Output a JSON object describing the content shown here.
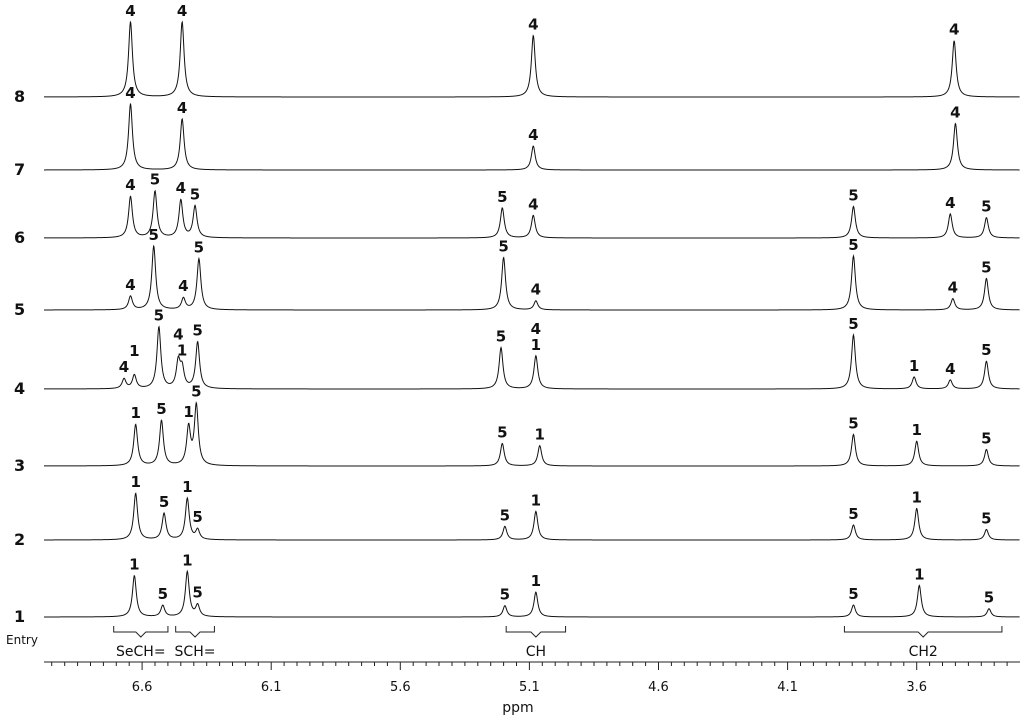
{
  "chart_data": {
    "type": "line",
    "subtype": "stacked-nmr-spectra",
    "xlabel": "ppm",
    "x_reversed": true,
    "xlim": [
      6.98,
      3.2
    ],
    "x_ticks": [
      6.6,
      6.1,
      5.6,
      5.1,
      4.6,
      4.1,
      3.6
    ],
    "x_tick_labels": [
      "6.6",
      "6.1",
      "5.6",
      "5.1",
      "4.6",
      "4.1",
      "3.6"
    ],
    "entry_axis_label": "Entry",
    "region_labels": [
      {
        "text": "SeCH=",
        "from": 6.71,
        "to": 6.5
      },
      {
        "text": "SCH=",
        "from": 6.47,
        "to": 6.32
      },
      {
        "text": "CH",
        "from": 5.19,
        "to": 4.96
      },
      {
        "text": "CH2",
        "from": 3.88,
        "to": 3.27
      }
    ],
    "series": [
      {
        "name": "1",
        "peaks": [
          {
            "ppm": 6.63,
            "height": 0.55,
            "label": "1"
          },
          {
            "ppm": 6.52,
            "height": 0.15,
            "label": "5"
          },
          {
            "ppm": 6.425,
            "height": 0.6,
            "label": "1"
          },
          {
            "ppm": 6.385,
            "height": 0.15,
            "label": "5"
          },
          {
            "ppm": 5.195,
            "height": 0.15,
            "label": "5"
          },
          {
            "ppm": 5.075,
            "height": 0.33,
            "label": "1"
          },
          {
            "ppm": 3.845,
            "height": 0.16,
            "label": "5"
          },
          {
            "ppm": 3.59,
            "height": 0.42,
            "label": "1"
          },
          {
            "ppm": 3.32,
            "height": 0.11,
            "label": "5"
          }
        ]
      },
      {
        "name": "2",
        "peaks": [
          {
            "ppm": 6.625,
            "height": 0.62,
            "label": "1"
          },
          {
            "ppm": 6.515,
            "height": 0.35,
            "label": "5"
          },
          {
            "ppm": 6.425,
            "height": 0.55,
            "label": "1"
          },
          {
            "ppm": 6.385,
            "height": 0.13,
            "label": "5"
          },
          {
            "ppm": 5.195,
            "height": 0.18,
            "label": "5"
          },
          {
            "ppm": 5.075,
            "height": 0.38,
            "label": "1"
          },
          {
            "ppm": 3.845,
            "height": 0.2,
            "label": "5"
          },
          {
            "ppm": 3.6,
            "height": 0.42,
            "label": "1"
          },
          {
            "ppm": 3.33,
            "height": 0.14,
            "label": "5"
          }
        ]
      },
      {
        "name": "3",
        "peaks": [
          {
            "ppm": 6.625,
            "height": 0.55,
            "label": "1"
          },
          {
            "ppm": 6.525,
            "height": 0.6,
            "label": "5"
          },
          {
            "ppm": 6.42,
            "height": 0.5,
            "label": "1"
          },
          {
            "ppm": 6.39,
            "height": 0.8,
            "label": "5"
          },
          {
            "ppm": 5.205,
            "height": 0.3,
            "label": "5"
          },
          {
            "ppm": 5.06,
            "height": 0.27,
            "label": "1"
          },
          {
            "ppm": 3.845,
            "height": 0.42,
            "label": "5"
          },
          {
            "ppm": 3.6,
            "height": 0.33,
            "label": "1"
          },
          {
            "ppm": 3.33,
            "height": 0.22,
            "label": "5"
          }
        ]
      },
      {
        "name": "4",
        "peaks": [
          {
            "ppm": 6.67,
            "height": 0.13,
            "label": "4"
          },
          {
            "ppm": 6.63,
            "height": 0.18,
            "label": "1"
          },
          {
            "ppm": 6.535,
            "height": 0.82,
            "label": "5"
          },
          {
            "ppm": 6.445,
            "height": 0.25,
            "label": "1"
          },
          {
            "ppm": 6.46,
            "height": 0.35,
            "label": "4"
          },
          {
            "ppm": 6.385,
            "height": 0.62,
            "label": "5"
          },
          {
            "ppm": 5.21,
            "height": 0.55,
            "label": "5"
          },
          {
            "ppm": 5.075,
            "height": 0.22,
            "label": "1"
          },
          {
            "ppm": 5.075,
            "height": 0.22,
            "label": "4"
          },
          {
            "ppm": 3.845,
            "height": 0.72,
            "label": "5"
          },
          {
            "ppm": 3.61,
            "height": 0.16,
            "label": "1"
          },
          {
            "ppm": 3.47,
            "height": 0.12,
            "label": "4"
          },
          {
            "ppm": 3.33,
            "height": 0.37,
            "label": "5"
          }
        ]
      },
      {
        "name": "5",
        "peaks": [
          {
            "ppm": 6.645,
            "height": 0.18,
            "label": "4"
          },
          {
            "ppm": 6.555,
            "height": 0.85,
            "label": "5"
          },
          {
            "ppm": 6.44,
            "height": 0.15,
            "label": "4"
          },
          {
            "ppm": 6.38,
            "height": 0.68,
            "label": "5"
          },
          {
            "ppm": 5.2,
            "height": 0.7,
            "label": "5"
          },
          {
            "ppm": 5.075,
            "height": 0.12,
            "label": "4"
          },
          {
            "ppm": 3.845,
            "height": 0.72,
            "label": "5"
          },
          {
            "ppm": 3.46,
            "height": 0.15,
            "label": "4"
          },
          {
            "ppm": 3.33,
            "height": 0.42,
            "label": "5"
          }
        ]
      },
      {
        "name": "6",
        "peaks": [
          {
            "ppm": 6.645,
            "height": 0.55,
            "label": "4"
          },
          {
            "ppm": 6.55,
            "height": 0.62,
            "label": "5"
          },
          {
            "ppm": 6.45,
            "height": 0.5,
            "label": "4"
          },
          {
            "ppm": 6.395,
            "height": 0.42,
            "label": "5"
          },
          {
            "ppm": 5.205,
            "height": 0.4,
            "label": "5"
          },
          {
            "ppm": 5.085,
            "height": 0.3,
            "label": "4"
          },
          {
            "ppm": 3.845,
            "height": 0.42,
            "label": "5"
          },
          {
            "ppm": 3.47,
            "height": 0.32,
            "label": "4"
          },
          {
            "ppm": 3.33,
            "height": 0.27,
            "label": "5"
          }
        ]
      },
      {
        "name": "7",
        "peaks": [
          {
            "ppm": 6.645,
            "height": 0.88,
            "label": "4"
          },
          {
            "ppm": 6.445,
            "height": 0.68,
            "label": "4"
          },
          {
            "ppm": 5.085,
            "height": 0.32,
            "label": "4"
          },
          {
            "ppm": 3.45,
            "height": 0.62,
            "label": "4"
          }
        ]
      },
      {
        "name": "8",
        "peaks": [
          {
            "ppm": 6.645,
            "height": 1.0,
            "label": "4"
          },
          {
            "ppm": 6.445,
            "height": 1.0,
            "label": "4"
          },
          {
            "ppm": 5.085,
            "height": 0.82,
            "label": "4"
          },
          {
            "ppm": 3.455,
            "height": 0.75,
            "label": "4"
          }
        ]
      }
    ],
    "grid": false,
    "legend": "none"
  }
}
